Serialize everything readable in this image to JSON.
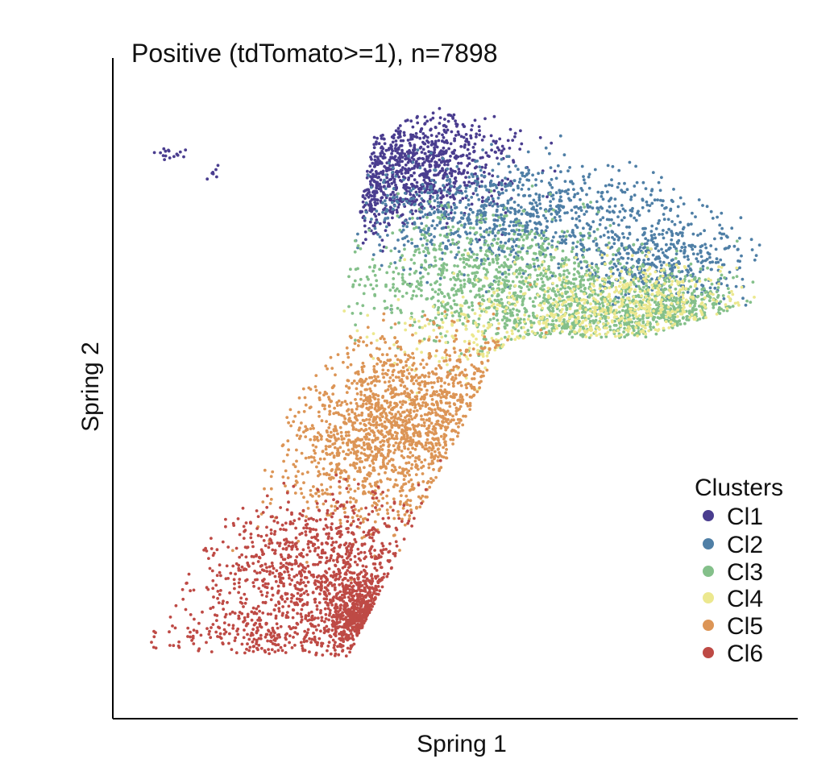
{
  "chart_data": {
    "type": "scatter",
    "title": "Positive (tdTomato>=1), n=7898",
    "xlabel": "Spring 1",
    "ylabel": "Spring 2",
    "xlim": [
      0,
      100
    ],
    "ylim": [
      0,
      100
    ],
    "ticks_shown": false,
    "grid": false,
    "legend_position": "bottom-right",
    "legend": {
      "title": "Clusters",
      "entries": [
        {
          "label": "Cl1",
          "color": "#4a3d8f"
        },
        {
          "label": "Cl2",
          "color": "#4f7fa6"
        },
        {
          "label": "Cl3",
          "color": "#84c08a"
        },
        {
          "label": "Cl4",
          "color": "#ece88f"
        },
        {
          "label": "Cl5",
          "color": "#dc9556"
        },
        {
          "label": "Cl6",
          "color": "#be4a45"
        }
      ]
    },
    "n_points": 7898,
    "series": [
      {
        "name": "Cl1",
        "color": "#4a3d8f",
        "count": 950,
        "regions": [
          {
            "center": [
              44,
              86
            ],
            "spread": [
              7,
              4.5
            ]
          },
          {
            "center": [
              37,
              80
            ],
            "spread": [
              3,
              2.5
            ]
          },
          {
            "center": [
              6,
              88
            ],
            "spread": [
              1.6,
              0.8
            ]
          },
          {
            "center": [
              13,
              85
            ],
            "spread": [
              0.8,
              0.6
            ]
          }
        ],
        "weights": [
          0.88,
          0.09,
          0.02,
          0.01
        ]
      },
      {
        "name": "Cl2",
        "color": "#4f7fa6",
        "count": 1350,
        "regions": [
          {
            "center": [
              60,
              78
            ],
            "spread": [
              14,
              4.5
            ]
          },
          {
            "center": [
              82,
              70
            ],
            "spread": [
              7,
              3
            ]
          }
        ],
        "weights": [
          0.7,
          0.3
        ]
      },
      {
        "name": "Cl3",
        "color": "#84c08a",
        "count": 1700,
        "regions": [
          {
            "center": [
              54,
              68
            ],
            "spread": [
              10,
              5
            ]
          },
          {
            "center": [
              72,
              62
            ],
            "spread": [
              10,
              4
            ]
          },
          {
            "center": [
              85,
              62
            ],
            "spread": [
              5,
              3
            ]
          }
        ],
        "weights": [
          0.45,
          0.38,
          0.17
        ]
      },
      {
        "name": "Cl4",
        "color": "#ece88f",
        "count": 650,
        "regions": [
          {
            "center": [
              78,
              63
            ],
            "spread": [
              9,
              4
            ]
          },
          {
            "center": [
              57,
              58
            ],
            "spread": [
              9,
              4
            ]
          }
        ],
        "weights": [
          0.72,
          0.28
        ]
      },
      {
        "name": "Cl5",
        "color": "#dc9556",
        "count": 1600,
        "regions": [
          {
            "center": [
              45,
              47
            ],
            "spread": [
              9,
              6
            ]
          },
          {
            "center": [
              38,
              38
            ],
            "spread": [
              8,
              6
            ]
          }
        ],
        "weights": [
          0.6,
          0.4
        ]
      },
      {
        "name": "Cl6",
        "color": "#be4a45",
        "count": 1648,
        "regions": [
          {
            "center": [
              32,
              20
            ],
            "spread": [
              10,
              6
            ]
          },
          {
            "center": [
              38,
              12
            ],
            "spread": [
              4,
              3
            ]
          },
          {
            "center": [
              18,
              9
            ],
            "spread": [
              9,
              3.5
            ]
          }
        ],
        "weights": [
          0.55,
          0.3,
          0.15
        ]
      }
    ]
  }
}
